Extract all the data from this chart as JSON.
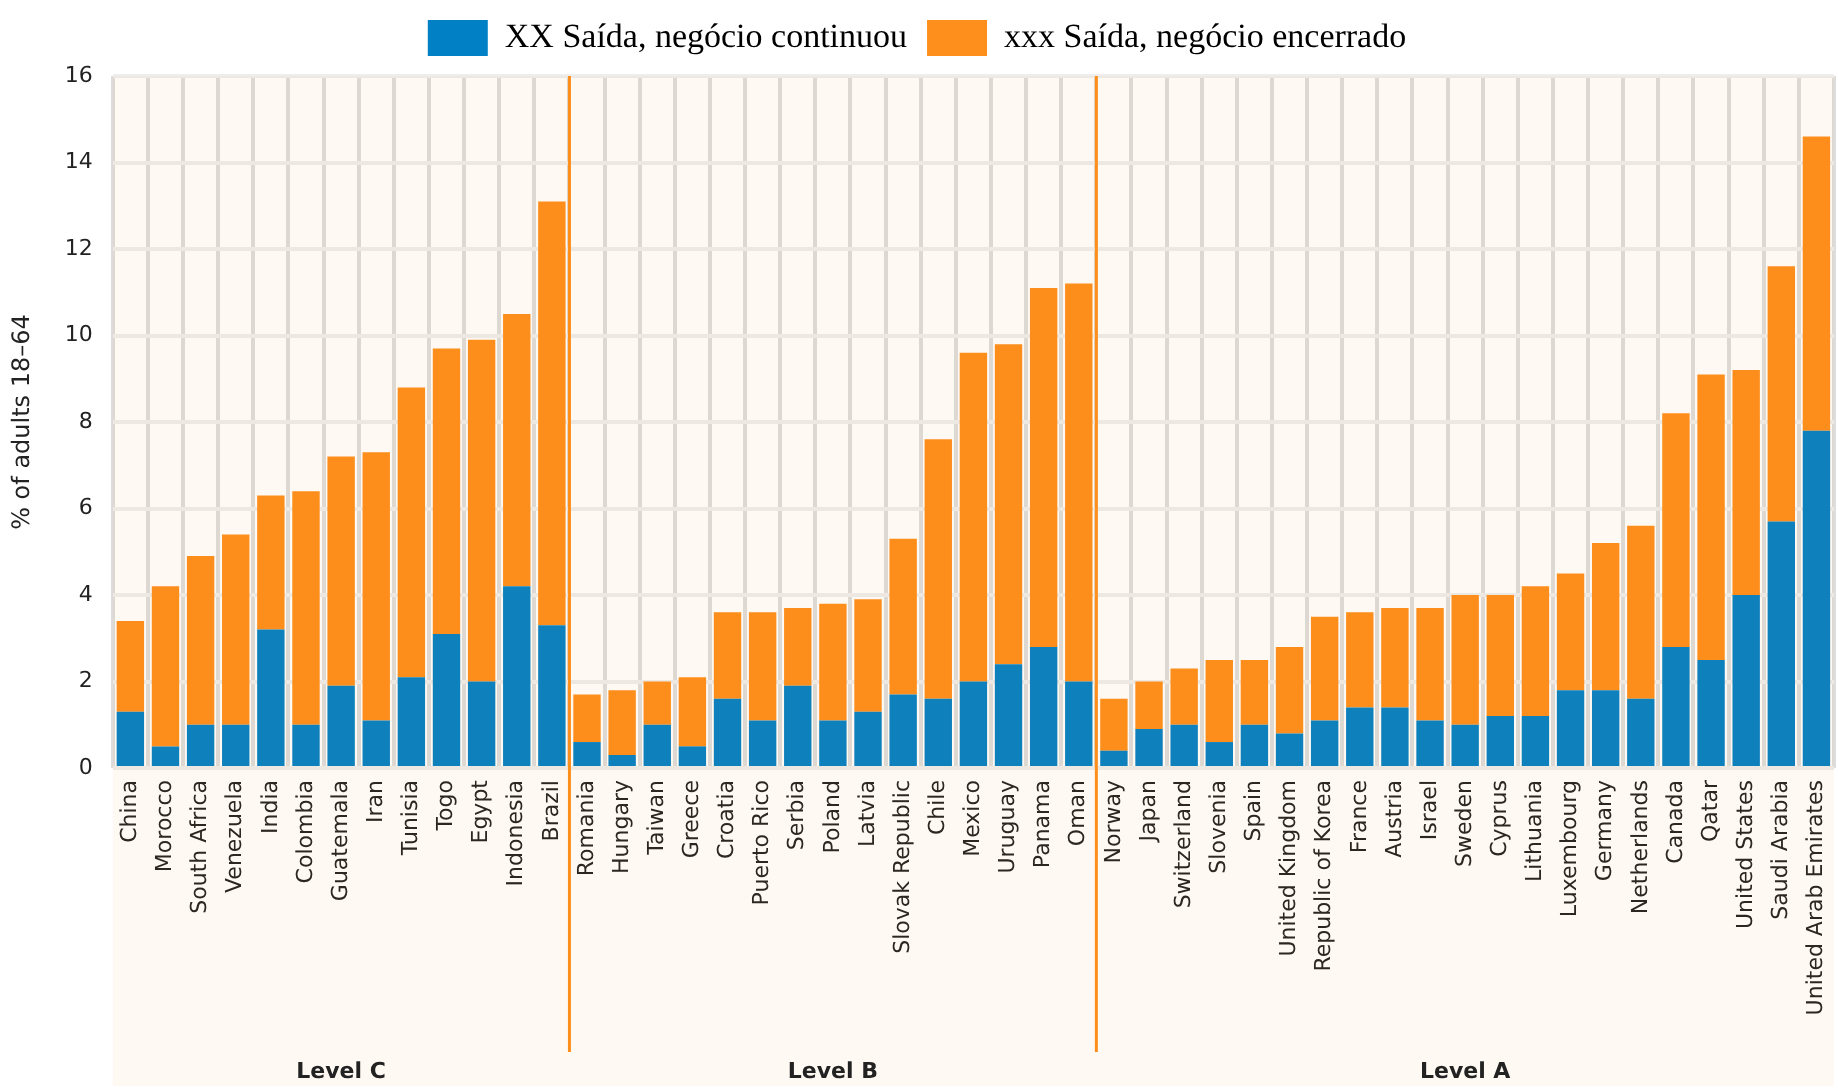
{
  "chart_data": {
    "type": "bar",
    "stacked": true,
    "ylabel": "% of adults 18–64",
    "categories": [
      "China",
      "Morocco",
      "South Africa",
      "Venezuela",
      "India",
      "Colombia",
      "Guatemala",
      "Iran",
      "Tunisia",
      "Togo",
      "Egypt",
      "Indonesia",
      "Brazil",
      "Romania",
      "Hungary",
      "Taiwan",
      "Greece",
      "Croatia",
      "Puerto Rico",
      "Serbia",
      "Poland",
      "Latvia",
      "Slovak Republic",
      "Chile",
      "Mexico",
      "Uruguay",
      "Panama",
      "Oman",
      "Norway",
      "Japan",
      "Switzerland",
      "Slovenia",
      "Spain",
      "United Kingdom",
      "Republic of Korea",
      "France",
      "Austria",
      "Israel",
      "Sweden",
      "Cyprus",
      "Lithuania",
      "Luxembourg",
      "Germany",
      "Netherlands",
      "Canada",
      "Qatar",
      "United States",
      "Saudi Arabia",
      "United Arab Emirates"
    ],
    "series": [
      {
        "name": "XX Saída, negócio continuou",
        "color": "#0280c6",
        "values": [
          1.3,
          0.5,
          1.0,
          1.0,
          3.2,
          1.0,
          1.9,
          1.1,
          2.1,
          3.1,
          2.0,
          4.2,
          3.3,
          0.6,
          0.3,
          1.0,
          0.5,
          1.6,
          1.1,
          1.9,
          1.1,
          1.3,
          1.7,
          1.6,
          2.0,
          2.4,
          2.8,
          2.0,
          0.4,
          0.9,
          1.0,
          0.6,
          1.0,
          0.8,
          1.1,
          1.4,
          1.4,
          1.1,
          1.0,
          1.2,
          1.2,
          1.8,
          1.8,
          1.6,
          2.8,
          2.5,
          4.0,
          5.7,
          7.8
        ]
      },
      {
        "name": "xxx Saída, negócio encerrado",
        "color": "#fe8f1d",
        "values": [
          2.1,
          3.7,
          3.9,
          4.4,
          3.1,
          5.4,
          5.3,
          6.2,
          6.7,
          6.6,
          7.9,
          6.3,
          9.8,
          1.1,
          1.5,
          1.0,
          1.6,
          2.0,
          2.5,
          1.8,
          2.7,
          2.6,
          3.6,
          6.0,
          7.6,
          7.4,
          8.3,
          9.2,
          1.2,
          1.1,
          1.3,
          1.9,
          1.5,
          2.0,
          2.4,
          2.2,
          2.3,
          2.6,
          3.0,
          2.8,
          3.0,
          2.7,
          3.4,
          4.0,
          5.4,
          6.6,
          5.2,
          5.9,
          6.8
        ]
      }
    ],
    "ylim": [
      0,
      16
    ],
    "yticks": [
      0,
      2,
      4,
      6,
      8,
      10,
      12,
      14,
      16
    ],
    "grid": true,
    "legend": "top",
    "bands": [
      {
        "axis": "x",
        "from": "China",
        "to": "Brazil",
        "label": "Level C",
        "color": "#fe8f1d"
      },
      {
        "axis": "x",
        "from": "Romania",
        "to": "Oman",
        "label": "Level B",
        "color": "#fe8f1d"
      },
      {
        "axis": "x",
        "from": "Norway",
        "to": "United Arab Emirates",
        "label": "Level A",
        "color": "#fe8f1d"
      }
    ]
  }
}
